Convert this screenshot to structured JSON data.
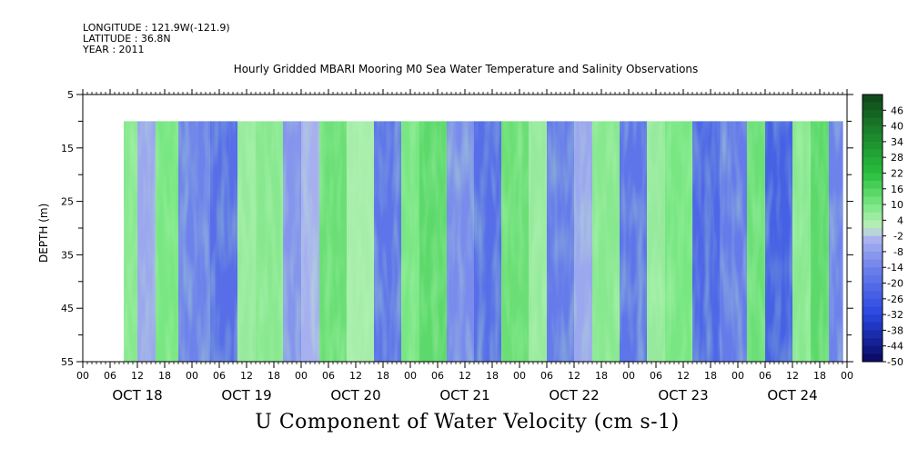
{
  "header": {
    "longitude": "LONGITUDE : 121.9W(-121.9)",
    "latitude": "LATITUDE : 36.8N",
    "year": "YEAR : 2011"
  },
  "chart_data": {
    "type": "heatmap",
    "title": "Hourly Gridded MBARI Mooring M0 Sea Water Temperature and Salinity Observations",
    "subtitle": "U Component of Water Velocity (cm s-1)",
    "ylabel": "DEPTH (m)",
    "xlabel": "",
    "yticks": [
      5,
      15,
      25,
      35,
      45,
      55
    ],
    "ylim": [
      55,
      5
    ],
    "x_hour_ticks": [
      "00",
      "06",
      "12",
      "18",
      "00",
      "06",
      "12",
      "18",
      "00",
      "06",
      "12",
      "18",
      "00",
      "06",
      "12",
      "18",
      "00",
      "06",
      "12",
      "18",
      "00",
      "06",
      "12",
      "18",
      "00",
      "06",
      "12",
      "18",
      "00"
    ],
    "x_days": [
      "OCT 18",
      "OCT 19",
      "OCT 20",
      "OCT 21",
      "OCT 22",
      "OCT 23",
      "OCT 24"
    ],
    "data_x_range_hours": [
      9,
      167
    ],
    "data_depth_range": [
      10,
      55
    ],
    "colorbar": {
      "labels": [
        "46",
        "40",
        "34",
        "28",
        "22",
        "16",
        "10",
        "4",
        "-2",
        "-8",
        "-14",
        "-20",
        "-26",
        "-32",
        "-38",
        "-44",
        "-50"
      ],
      "range": [
        -50,
        52
      ],
      "step": 3
    },
    "bands": [
      {
        "hours": [
          9,
          12
        ],
        "value": 8
      },
      {
        "hours": [
          12,
          16
        ],
        "value": -6
      },
      {
        "hours": [
          16,
          21
        ],
        "value": 10
      },
      {
        "hours": [
          21,
          28
        ],
        "value": -14
      },
      {
        "hours": [
          28,
          34
        ],
        "value": -20
      },
      {
        "hours": [
          34,
          38
        ],
        "value": 6
      },
      {
        "hours": [
          38,
          44
        ],
        "value": 8
      },
      {
        "hours": [
          44,
          48
        ],
        "value": -10
      },
      {
        "hours": [
          48,
          52
        ],
        "value": -4
      },
      {
        "hours": [
          52,
          58
        ],
        "value": 12
      },
      {
        "hours": [
          58,
          64
        ],
        "value": 4
      },
      {
        "hours": [
          64,
          70
        ],
        "value": -18
      },
      {
        "hours": [
          70,
          74
        ],
        "value": 10
      },
      {
        "hours": [
          74,
          80
        ],
        "value": 14
      },
      {
        "hours": [
          80,
          86
        ],
        "value": -12
      },
      {
        "hours": [
          86,
          92
        ],
        "value": -20
      },
      {
        "hours": [
          92,
          98
        ],
        "value": 12
      },
      {
        "hours": [
          98,
          102
        ],
        "value": 6
      },
      {
        "hours": [
          102,
          108
        ],
        "value": -16
      },
      {
        "hours": [
          108,
          112
        ],
        "value": -6
      },
      {
        "hours": [
          112,
          118
        ],
        "value": 8
      },
      {
        "hours": [
          118,
          124
        ],
        "value": -18
      },
      {
        "hours": [
          124,
          128
        ],
        "value": 6
      },
      {
        "hours": [
          128,
          134
        ],
        "value": 10
      },
      {
        "hours": [
          134,
          140
        ],
        "value": -22
      },
      {
        "hours": [
          140,
          146
        ],
        "value": -16
      },
      {
        "hours": [
          146,
          150
        ],
        "value": 12
      },
      {
        "hours": [
          150,
          156
        ],
        "value": -24
      },
      {
        "hours": [
          156,
          160
        ],
        "value": 8
      },
      {
        "hours": [
          160,
          164
        ],
        "value": 14
      },
      {
        "hours": [
          164,
          167
        ],
        "value": -14
      }
    ]
  }
}
